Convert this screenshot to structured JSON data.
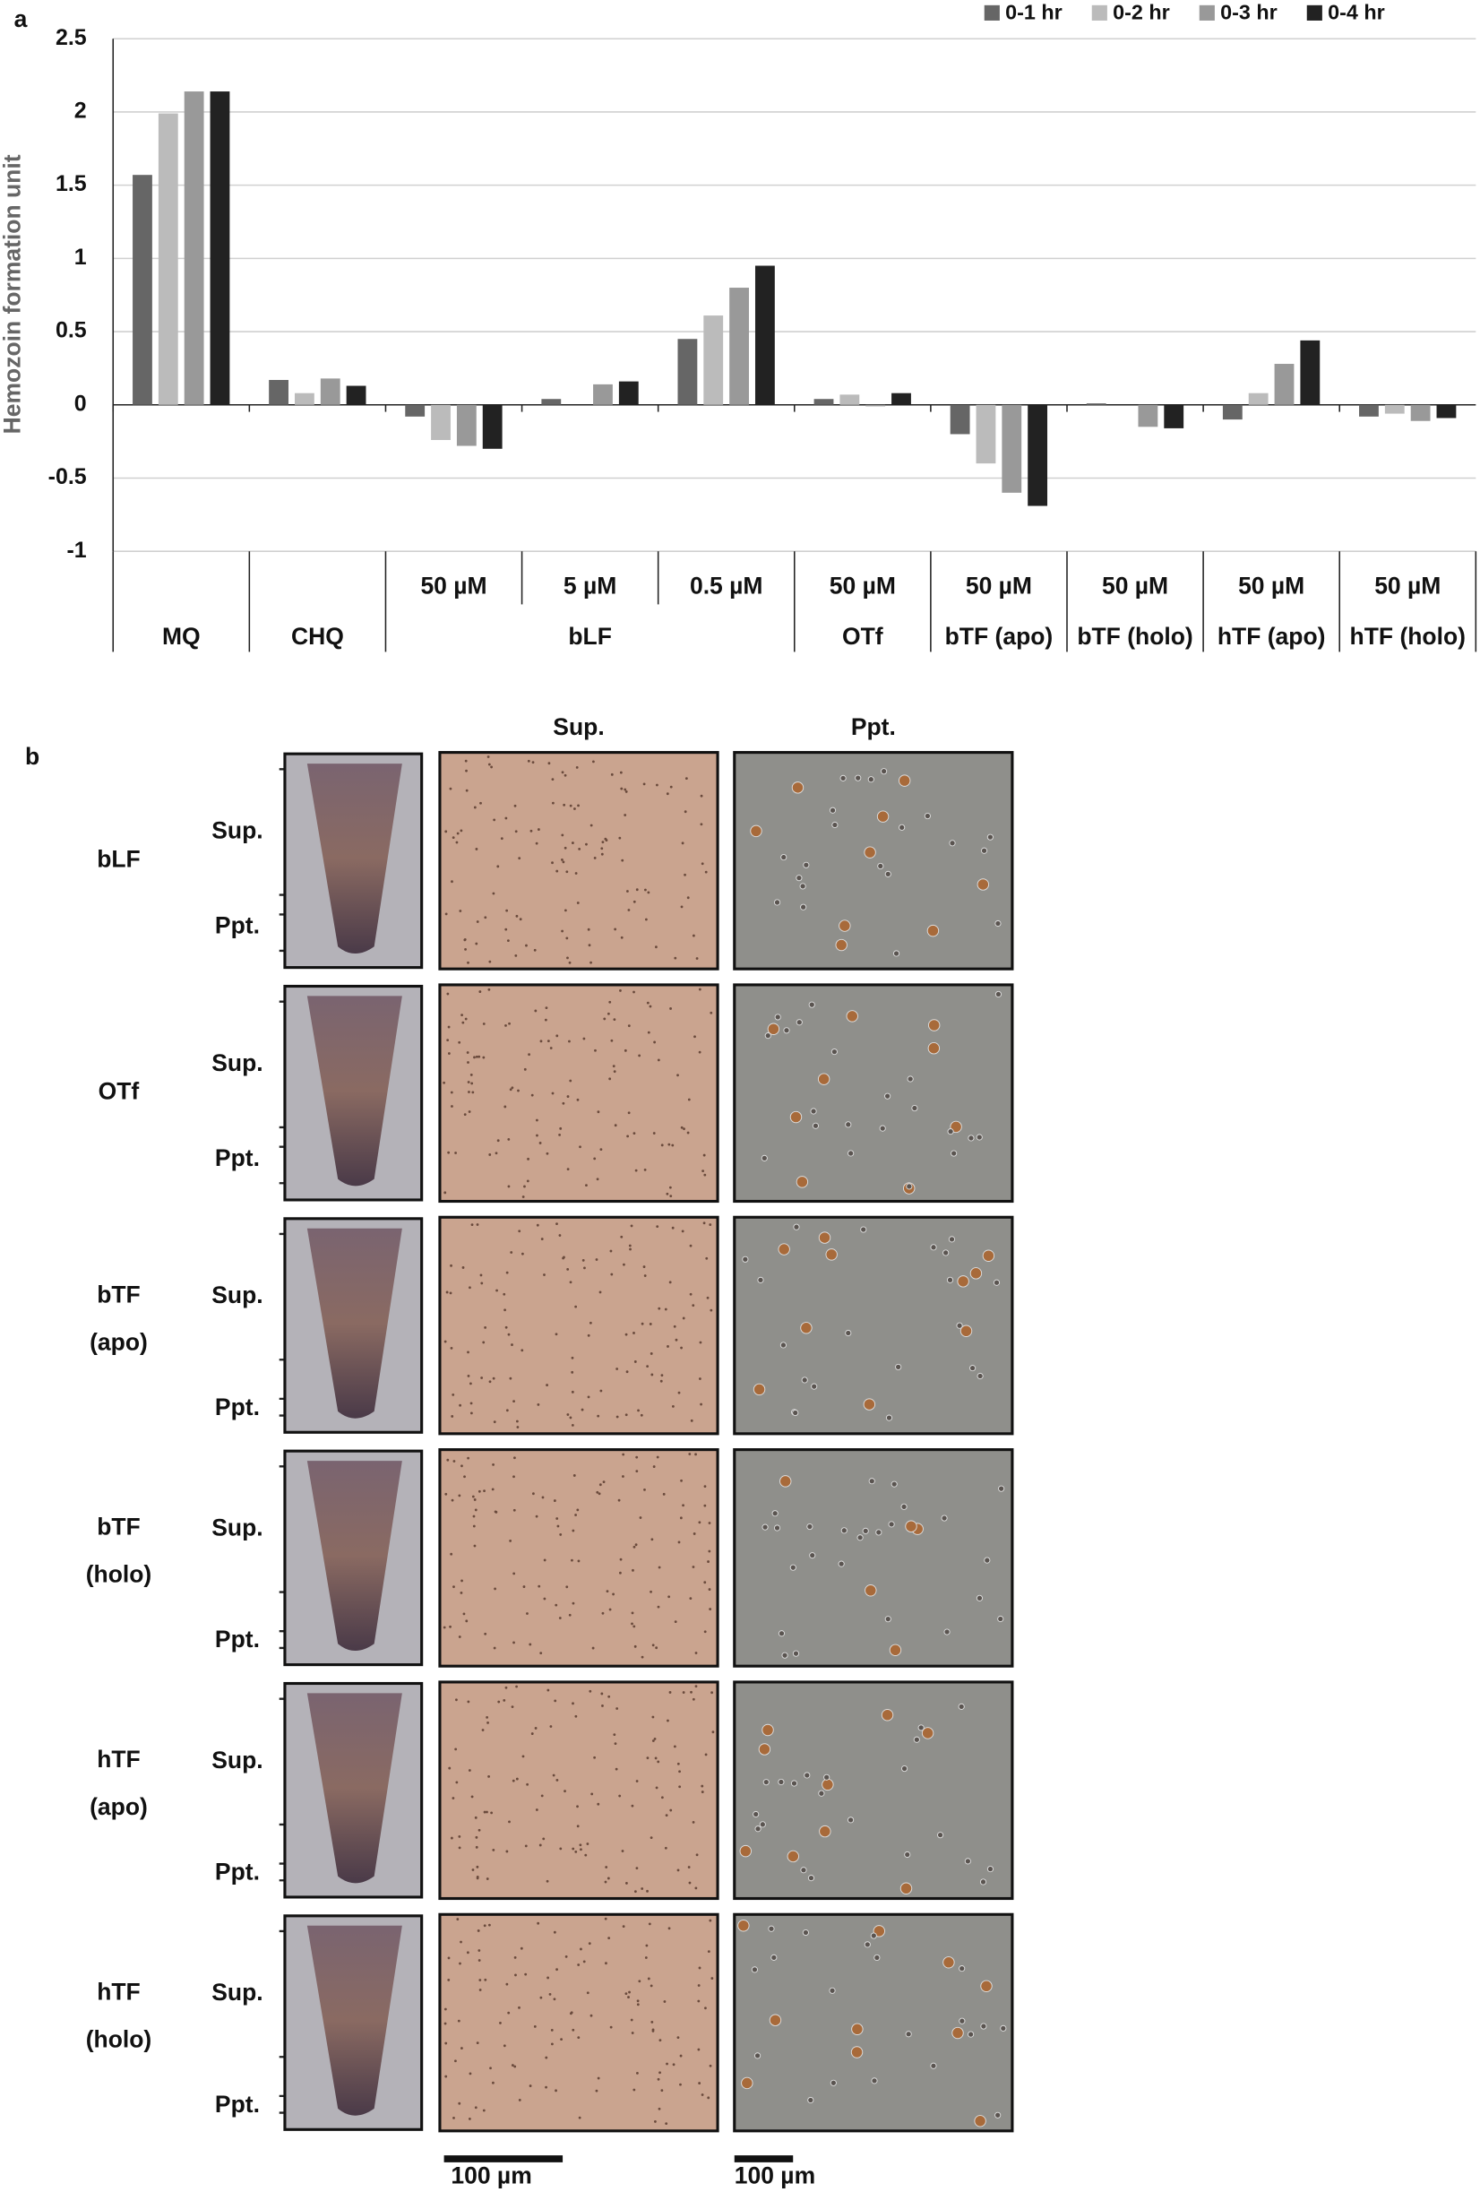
{
  "chart_data": {
    "type": "bar",
    "panel_label": "a",
    "y_label": "Hemozoin formation unit",
    "categories": [
      null,
      null,
      "50 µM",
      "5 µM",
      "0.5 µM",
      "50 µM",
      "50 µM",
      "50 µM",
      "50 µM",
      "50 µM"
    ],
    "category_groups": [
      "MQ",
      "CHQ",
      "bLF",
      null,
      null,
      "OTf",
      "bTF (apo)",
      "bTF (holo)",
      "hTF (apo)",
      "hTF (holo)"
    ],
    "series": [
      {
        "name": "0-1 hr",
        "color": "#666666",
        "values": [
          1.57,
          0.17,
          -0.08,
          0.04,
          0.45,
          0.04,
          -0.2,
          0.01,
          -0.1,
          -0.08
        ]
      },
      {
        "name": "0-2 hr",
        "color": "#bbbbbb",
        "values": [
          1.99,
          0.08,
          -0.24,
          0,
          0.61,
          0.07,
          -0.4,
          0,
          0.08,
          -0.06
        ]
      },
      {
        "name": "0-3 hr",
        "color": "#999999",
        "values": [
          2.14,
          0.18,
          -0.28,
          0.14,
          0.8,
          -0.01,
          -0.6,
          -0.15,
          0.28,
          -0.11
        ]
      },
      {
        "name": "0-4 hr",
        "color": "#222222",
        "values": [
          2.14,
          0.13,
          -0.3,
          0.16,
          0.95,
          0.08,
          -0.69,
          -0.16,
          0.44,
          -0.09
        ]
      }
    ],
    "ylim": [
      -1,
      2.5
    ],
    "yticks": [
      -1,
      -0.5,
      0,
      0.5,
      1,
      1.5,
      2,
      2.5
    ],
    "grid": true,
    "legend": "top-right"
  },
  "panel_b": {
    "panel_label": "b",
    "column_headers": [
      "Sup.",
      "Ppt."
    ],
    "rows": [
      {
        "label": [
          "bLF"
        ],
        "fraction_labels": [
          "Sup.",
          "Ppt."
        ]
      },
      {
        "label": [
          "OTf"
        ],
        "fraction_labels": [
          "Sup.",
          "Ppt."
        ]
      },
      {
        "label": [
          "bTF",
          "(apo)"
        ],
        "fraction_labels": [
          "Sup.",
          "Ppt."
        ]
      },
      {
        "label": [
          "bTF",
          "(holo)"
        ],
        "fraction_labels": [
          "Sup.",
          "Ppt."
        ]
      },
      {
        "label": [
          "hTF",
          "(apo)"
        ],
        "fraction_labels": [
          "Sup.",
          "Ppt."
        ]
      },
      {
        "label": [
          "hTF",
          "(holo)"
        ],
        "fraction_labels": [
          "Sup.",
          "Ppt."
        ]
      }
    ],
    "scale_bars": [
      "100 µm",
      "100 µm"
    ]
  }
}
